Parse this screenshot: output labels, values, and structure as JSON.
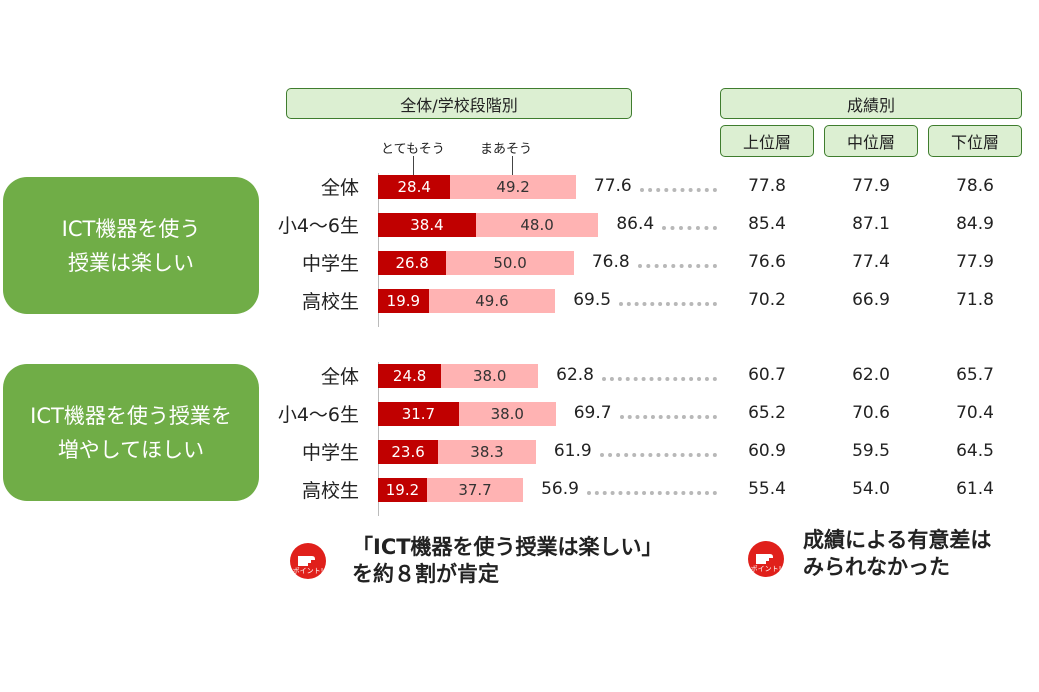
{
  "headers": {
    "overall": "全体/学校段階別",
    "grade": "成績別",
    "grade_cols": [
      "上位層",
      "中位層",
      "下位層"
    ]
  },
  "legend": {
    "dark": "とてもそう",
    "light": "まあそう"
  },
  "point_icon_text": "ポイント!",
  "points": {
    "left": [
      "「ICT機器を使う授業は楽しい」",
      "を約８割が肯定"
    ],
    "right": [
      "成績による有意差は",
      "みられなかった"
    ]
  },
  "chart_data": {
    "type": "bar",
    "stacked": true,
    "orientation": "horizontal",
    "series_names": [
      "とてもそう",
      "まあそう"
    ],
    "colors": {
      "dark": "#c00000",
      "light": "#ffb3b3",
      "group_box": "#70ad47",
      "header_fill": "#dcefd2"
    },
    "groups": [
      {
        "title_lines": [
          "ICT機器を使う",
          "授業は楽しい"
        ],
        "rows": [
          {
            "label": "全体",
            "dark": 28.4,
            "light": 49.2,
            "total": 77.6,
            "grade": [
              77.8,
              77.9,
              78.6
            ]
          },
          {
            "label": "小4～6生",
            "dark": 38.4,
            "light": 48.0,
            "total": 86.4,
            "grade": [
              85.4,
              87.1,
              84.9
            ]
          },
          {
            "label": "中学生",
            "dark": 26.8,
            "light": 50.0,
            "total": 76.8,
            "grade": [
              76.6,
              77.4,
              77.9
            ]
          },
          {
            "label": "高校生",
            "dark": 19.9,
            "light": 49.6,
            "total": 69.5,
            "grade": [
              70.2,
              66.9,
              71.8
            ]
          }
        ]
      },
      {
        "title_lines": [
          "ICT機器を使う授業を",
          "増やしてほしい"
        ],
        "rows": [
          {
            "label": "全体",
            "dark": 24.8,
            "light": 38.0,
            "total": 62.8,
            "grade": [
              60.7,
              62.0,
              65.7
            ]
          },
          {
            "label": "小4～6生",
            "dark": 31.7,
            "light": 38.0,
            "total": 69.7,
            "grade": [
              65.2,
              70.6,
              70.4
            ]
          },
          {
            "label": "中学生",
            "dark": 23.6,
            "light": 38.3,
            "total": 61.9,
            "grade": [
              60.9,
              59.5,
              64.5
            ]
          },
          {
            "label": "高校生",
            "dark": 19.2,
            "light": 37.7,
            "total": 56.9,
            "grade": [
              55.4,
              54.0,
              61.4
            ]
          }
        ]
      }
    ]
  }
}
